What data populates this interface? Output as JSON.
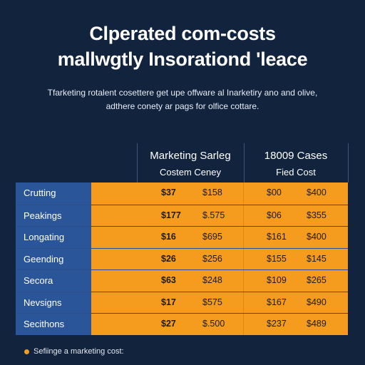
{
  "header": {
    "title_line1": "Clperated com-costs",
    "title_line2": "mallwgtly Insorationd 'leace",
    "subtitle_line1": "Tfarketing rotalent cosettere get upe offware al Inarketiry ano and olive,",
    "subtitle_line2": "adthere conety ar pags for olfice cottare."
  },
  "table": {
    "col_group_left": {
      "title": "Marketing Sarleg",
      "subtitle": "Costem Ceney"
    },
    "col_group_right": {
      "title": "18009 Cases",
      "subtitle": "Fied Cost"
    },
    "rows": [
      {
        "label": "Crutting",
        "v1": "$37",
        "v2": "$158",
        "v3": "$00",
        "v4": "$400"
      },
      {
        "label": "Peakings",
        "v1": "$177",
        "v2": "$.575",
        "v3": "$06",
        "v4": "$355"
      },
      {
        "label": "Longating",
        "v1": "$16",
        "v2": "$695",
        "v3": "$161",
        "v4": "$400"
      },
      {
        "label": "Geending",
        "v1": "$26",
        "v2": "$256",
        "v3": "$155",
        "v4": "$145"
      },
      {
        "label": "Secora",
        "v1": "$63",
        "v2": "$248",
        "v3": "$109",
        "v4": "$265"
      },
      {
        "label": "Nevsigns",
        "v1": "$17",
        "v2": "$575",
        "v3": "$167",
        "v4": "$490"
      },
      {
        "label": "Secithons",
        "v1": "$27",
        "v2": "$.500",
        "v3": "$237",
        "v4": "$489"
      }
    ]
  },
  "footnote": {
    "text": "Sefiinge a marketing cost:"
  },
  "colors": {
    "background": "#12233e",
    "label_blue": "#2a5699",
    "accent_orange": "#f59b1d"
  }
}
